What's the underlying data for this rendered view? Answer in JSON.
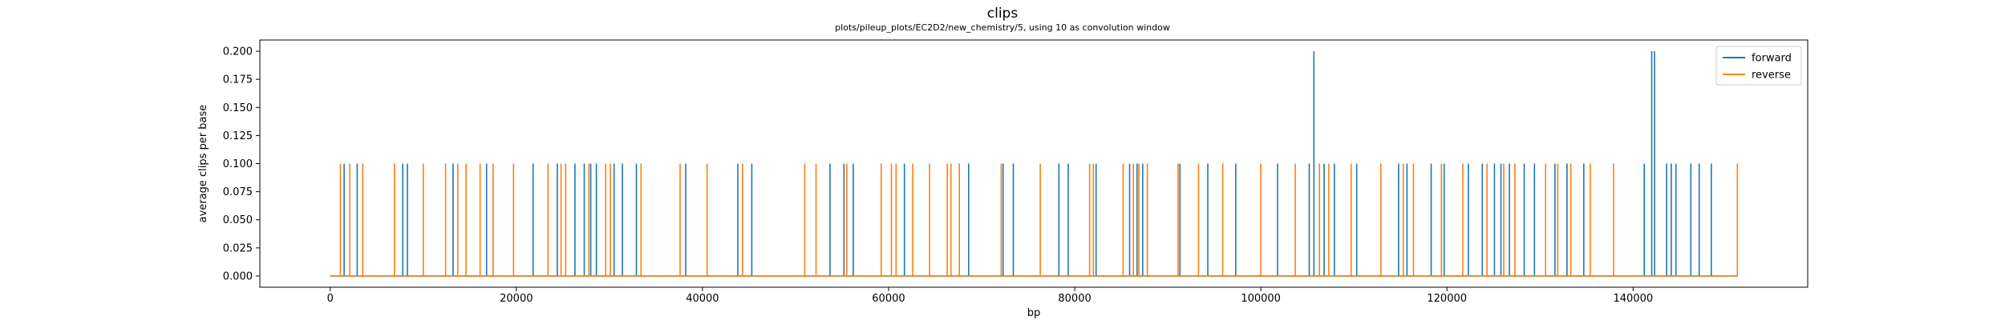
{
  "chart_data": {
    "type": "line",
    "title": "clips",
    "subtitle": "plots/pileup_plots/EC2D2/new_chemistry/5, using 10 as convolution window",
    "xlabel": "bp",
    "ylabel": "average clips per base",
    "xlim": [
      -7560,
      158760
    ],
    "ylim": [
      -0.01,
      0.21
    ],
    "x_range": [
      0,
      151200
    ],
    "xticks": [
      0,
      20000,
      40000,
      60000,
      80000,
      100000,
      120000,
      140000
    ],
    "yticks": [
      "0.000",
      "0.025",
      "0.050",
      "0.075",
      "0.100",
      "0.125",
      "0.150",
      "0.175",
      "0.200"
    ],
    "legend_position": "top-right",
    "grid": false,
    "series": [
      {
        "name": "forward",
        "color": "#1f77b4",
        "baseline": 0.0,
        "spikes": [
          {
            "x": 1500,
            "y": 0.1
          },
          {
            "x": 2900,
            "y": 0.1
          },
          {
            "x": 7800,
            "y": 0.1
          },
          {
            "x": 8300,
            "y": 0.1
          },
          {
            "x": 13200,
            "y": 0.1
          },
          {
            "x": 16800,
            "y": 0.1
          },
          {
            "x": 21800,
            "y": 0.1
          },
          {
            "x": 24400,
            "y": 0.1
          },
          {
            "x": 26300,
            "y": 0.1
          },
          {
            "x": 27300,
            "y": 0.1
          },
          {
            "x": 28000,
            "y": 0.1
          },
          {
            "x": 28600,
            "y": 0.1
          },
          {
            "x": 30500,
            "y": 0.1
          },
          {
            "x": 31400,
            "y": 0.1
          },
          {
            "x": 32900,
            "y": 0.1
          },
          {
            "x": 38200,
            "y": 0.1
          },
          {
            "x": 43800,
            "y": 0.1
          },
          {
            "x": 45300,
            "y": 0.1
          },
          {
            "x": 53700,
            "y": 0.1
          },
          {
            "x": 55200,
            "y": 0.1
          },
          {
            "x": 56200,
            "y": 0.1
          },
          {
            "x": 61700,
            "y": 0.1
          },
          {
            "x": 68600,
            "y": 0.1
          },
          {
            "x": 72300,
            "y": 0.1
          },
          {
            "x": 73400,
            "y": 0.1
          },
          {
            "x": 78300,
            "y": 0.1
          },
          {
            "x": 79300,
            "y": 0.1
          },
          {
            "x": 82300,
            "y": 0.1
          },
          {
            "x": 85900,
            "y": 0.1
          },
          {
            "x": 86700,
            "y": 0.1
          },
          {
            "x": 87300,
            "y": 0.1
          },
          {
            "x": 91300,
            "y": 0.1
          },
          {
            "x": 94300,
            "y": 0.1
          },
          {
            "x": 97300,
            "y": 0.1
          },
          {
            "x": 101800,
            "y": 0.1
          },
          {
            "x": 105200,
            "y": 0.1
          },
          {
            "x": 105700,
            "y": 0.2
          },
          {
            "x": 106800,
            "y": 0.1
          },
          {
            "x": 107900,
            "y": 0.1
          },
          {
            "x": 110300,
            "y": 0.1
          },
          {
            "x": 114800,
            "y": 0.1
          },
          {
            "x": 115700,
            "y": 0.1
          },
          {
            "x": 118300,
            "y": 0.1
          },
          {
            "x": 119700,
            "y": 0.1
          },
          {
            "x": 122300,
            "y": 0.1
          },
          {
            "x": 123800,
            "y": 0.1
          },
          {
            "x": 125100,
            "y": 0.1
          },
          {
            "x": 125800,
            "y": 0.1
          },
          {
            "x": 126700,
            "y": 0.1
          },
          {
            "x": 128300,
            "y": 0.1
          },
          {
            "x": 129400,
            "y": 0.1
          },
          {
            "x": 131600,
            "y": 0.1
          },
          {
            "x": 132900,
            "y": 0.1
          },
          {
            "x": 134700,
            "y": 0.1
          },
          {
            "x": 141200,
            "y": 0.1
          },
          {
            "x": 142000,
            "y": 0.2
          },
          {
            "x": 142300,
            "y": 0.2
          },
          {
            "x": 143600,
            "y": 0.1
          },
          {
            "x": 144100,
            "y": 0.1
          },
          {
            "x": 144600,
            "y": 0.1
          },
          {
            "x": 146200,
            "y": 0.1
          },
          {
            "x": 147100,
            "y": 0.1
          },
          {
            "x": 148400,
            "y": 0.1
          }
        ]
      },
      {
        "name": "reverse",
        "color": "#ff7f0e",
        "baseline": 0.0,
        "spikes": [
          {
            "x": 1100,
            "y": 0.1
          },
          {
            "x": 2100,
            "y": 0.1
          },
          {
            "x": 3500,
            "y": 0.1
          },
          {
            "x": 6900,
            "y": 0.1
          },
          {
            "x": 10000,
            "y": 0.1
          },
          {
            "x": 12400,
            "y": 0.1
          },
          {
            "x": 13700,
            "y": 0.1
          },
          {
            "x": 14600,
            "y": 0.1
          },
          {
            "x": 16100,
            "y": 0.1
          },
          {
            "x": 17500,
            "y": 0.1
          },
          {
            "x": 19700,
            "y": 0.1
          },
          {
            "x": 23400,
            "y": 0.1
          },
          {
            "x": 24800,
            "y": 0.1
          },
          {
            "x": 25300,
            "y": 0.1
          },
          {
            "x": 27800,
            "y": 0.1
          },
          {
            "x": 29600,
            "y": 0.1
          },
          {
            "x": 30100,
            "y": 0.1
          },
          {
            "x": 33400,
            "y": 0.1
          },
          {
            "x": 37600,
            "y": 0.1
          },
          {
            "x": 40500,
            "y": 0.1
          },
          {
            "x": 44300,
            "y": 0.1
          },
          {
            "x": 51000,
            "y": 0.1
          },
          {
            "x": 52200,
            "y": 0.1
          },
          {
            "x": 55500,
            "y": 0.1
          },
          {
            "x": 59200,
            "y": 0.1
          },
          {
            "x": 60300,
            "y": 0.1
          },
          {
            "x": 60800,
            "y": 0.1
          },
          {
            "x": 62600,
            "y": 0.1
          },
          {
            "x": 64400,
            "y": 0.1
          },
          {
            "x": 66300,
            "y": 0.1
          },
          {
            "x": 66700,
            "y": 0.1
          },
          {
            "x": 67600,
            "y": 0.1
          },
          {
            "x": 72100,
            "y": 0.1
          },
          {
            "x": 76300,
            "y": 0.1
          },
          {
            "x": 81600,
            "y": 0.1
          },
          {
            "x": 82000,
            "y": 0.1
          },
          {
            "x": 85200,
            "y": 0.1
          },
          {
            "x": 86300,
            "y": 0.1
          },
          {
            "x": 86900,
            "y": 0.1
          },
          {
            "x": 87800,
            "y": 0.1
          },
          {
            "x": 91100,
            "y": 0.1
          },
          {
            "x": 93300,
            "y": 0.1
          },
          {
            "x": 95900,
            "y": 0.1
          },
          {
            "x": 100000,
            "y": 0.1
          },
          {
            "x": 103700,
            "y": 0.1
          },
          {
            "x": 106300,
            "y": 0.1
          },
          {
            "x": 107300,
            "y": 0.1
          },
          {
            "x": 109700,
            "y": 0.1
          },
          {
            "x": 112900,
            "y": 0.1
          },
          {
            "x": 115300,
            "y": 0.1
          },
          {
            "x": 116400,
            "y": 0.1
          },
          {
            "x": 119400,
            "y": 0.1
          },
          {
            "x": 121700,
            "y": 0.1
          },
          {
            "x": 124300,
            "y": 0.1
          },
          {
            "x": 126100,
            "y": 0.1
          },
          {
            "x": 127300,
            "y": 0.1
          },
          {
            "x": 130600,
            "y": 0.1
          },
          {
            "x": 131900,
            "y": 0.1
          },
          {
            "x": 133300,
            "y": 0.1
          },
          {
            "x": 135400,
            "y": 0.1
          },
          {
            "x": 137900,
            "y": 0.1
          },
          {
            "x": 151200,
            "y": 0.1
          }
        ]
      }
    ]
  }
}
